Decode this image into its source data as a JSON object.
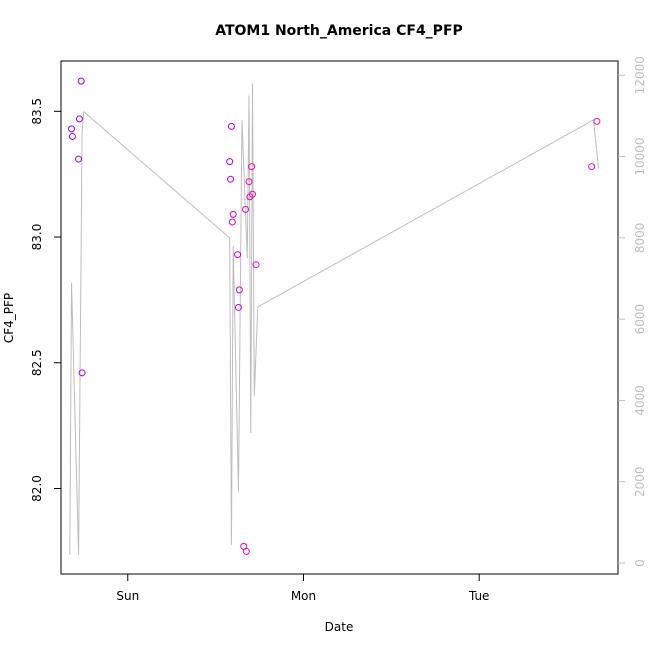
{
  "chart_data": {
    "type": "scatter",
    "title": "ATOM1 North_America CF4_PFP",
    "xlabel": "Date",
    "ylabel": "CF4_PFP",
    "x_tick_labels": [
      "Sun",
      "Mon",
      "Tue"
    ],
    "x_tick_days": [
      1,
      2,
      3
    ],
    "xlim_days": [
      0.62,
      3.79
    ],
    "ylim": [
      81.66,
      83.7
    ],
    "yticks": [
      82.0,
      82.5,
      83.0,
      83.5
    ],
    "y_tick_labels": [
      "82.0",
      "82.5",
      "83.0",
      "83.5"
    ],
    "y2lim": [
      -270,
      12350
    ],
    "y2ticks": [
      0,
      2000,
      4000,
      6000,
      8000,
      10000,
      12000
    ],
    "y2_tick_labels": [
      "0",
      "2000",
      "4000",
      "6000",
      "8000",
      "10000",
      "12000"
    ],
    "grid": false,
    "legend": "none",
    "series": [
      {
        "kind": "points",
        "color_start": "#8b00ff",
        "color_end": "#ff1493",
        "x_days": [
          0.68,
          0.685,
          0.72,
          0.725,
          0.735,
          0.74,
          1.58,
          1.585,
          1.59,
          1.595,
          1.6,
          1.625,
          1.63,
          1.635,
          1.66,
          1.67,
          1.675,
          1.69,
          1.695,
          1.705,
          1.71,
          1.73,
          3.64,
          3.67
        ],
        "y": [
          83.43,
          83.4,
          83.31,
          83.47,
          83.62,
          82.46,
          83.3,
          83.23,
          83.44,
          83.06,
          83.09,
          82.93,
          82.72,
          82.79,
          81.77,
          83.11,
          81.75,
          83.22,
          83.16,
          83.28,
          83.17,
          82.89,
          83.28,
          83.46
        ]
      },
      {
        "kind": "line",
        "axis": "right",
        "color": "#bdbdbd",
        "x_days": [
          0.67,
          0.68,
          0.72,
          0.74,
          0.75,
          1.58,
          1.59,
          1.6,
          1.63,
          1.65,
          1.68,
          1.69,
          1.7,
          1.71,
          1.72,
          1.74,
          3.65,
          3.68
        ],
        "y": [
          200,
          6900,
          200,
          10600,
          11100,
          8000,
          450,
          7800,
          1750,
          10900,
          7500,
          11500,
          3200,
          11800,
          4100,
          6300,
          10900,
          9700
        ]
      }
    ]
  }
}
